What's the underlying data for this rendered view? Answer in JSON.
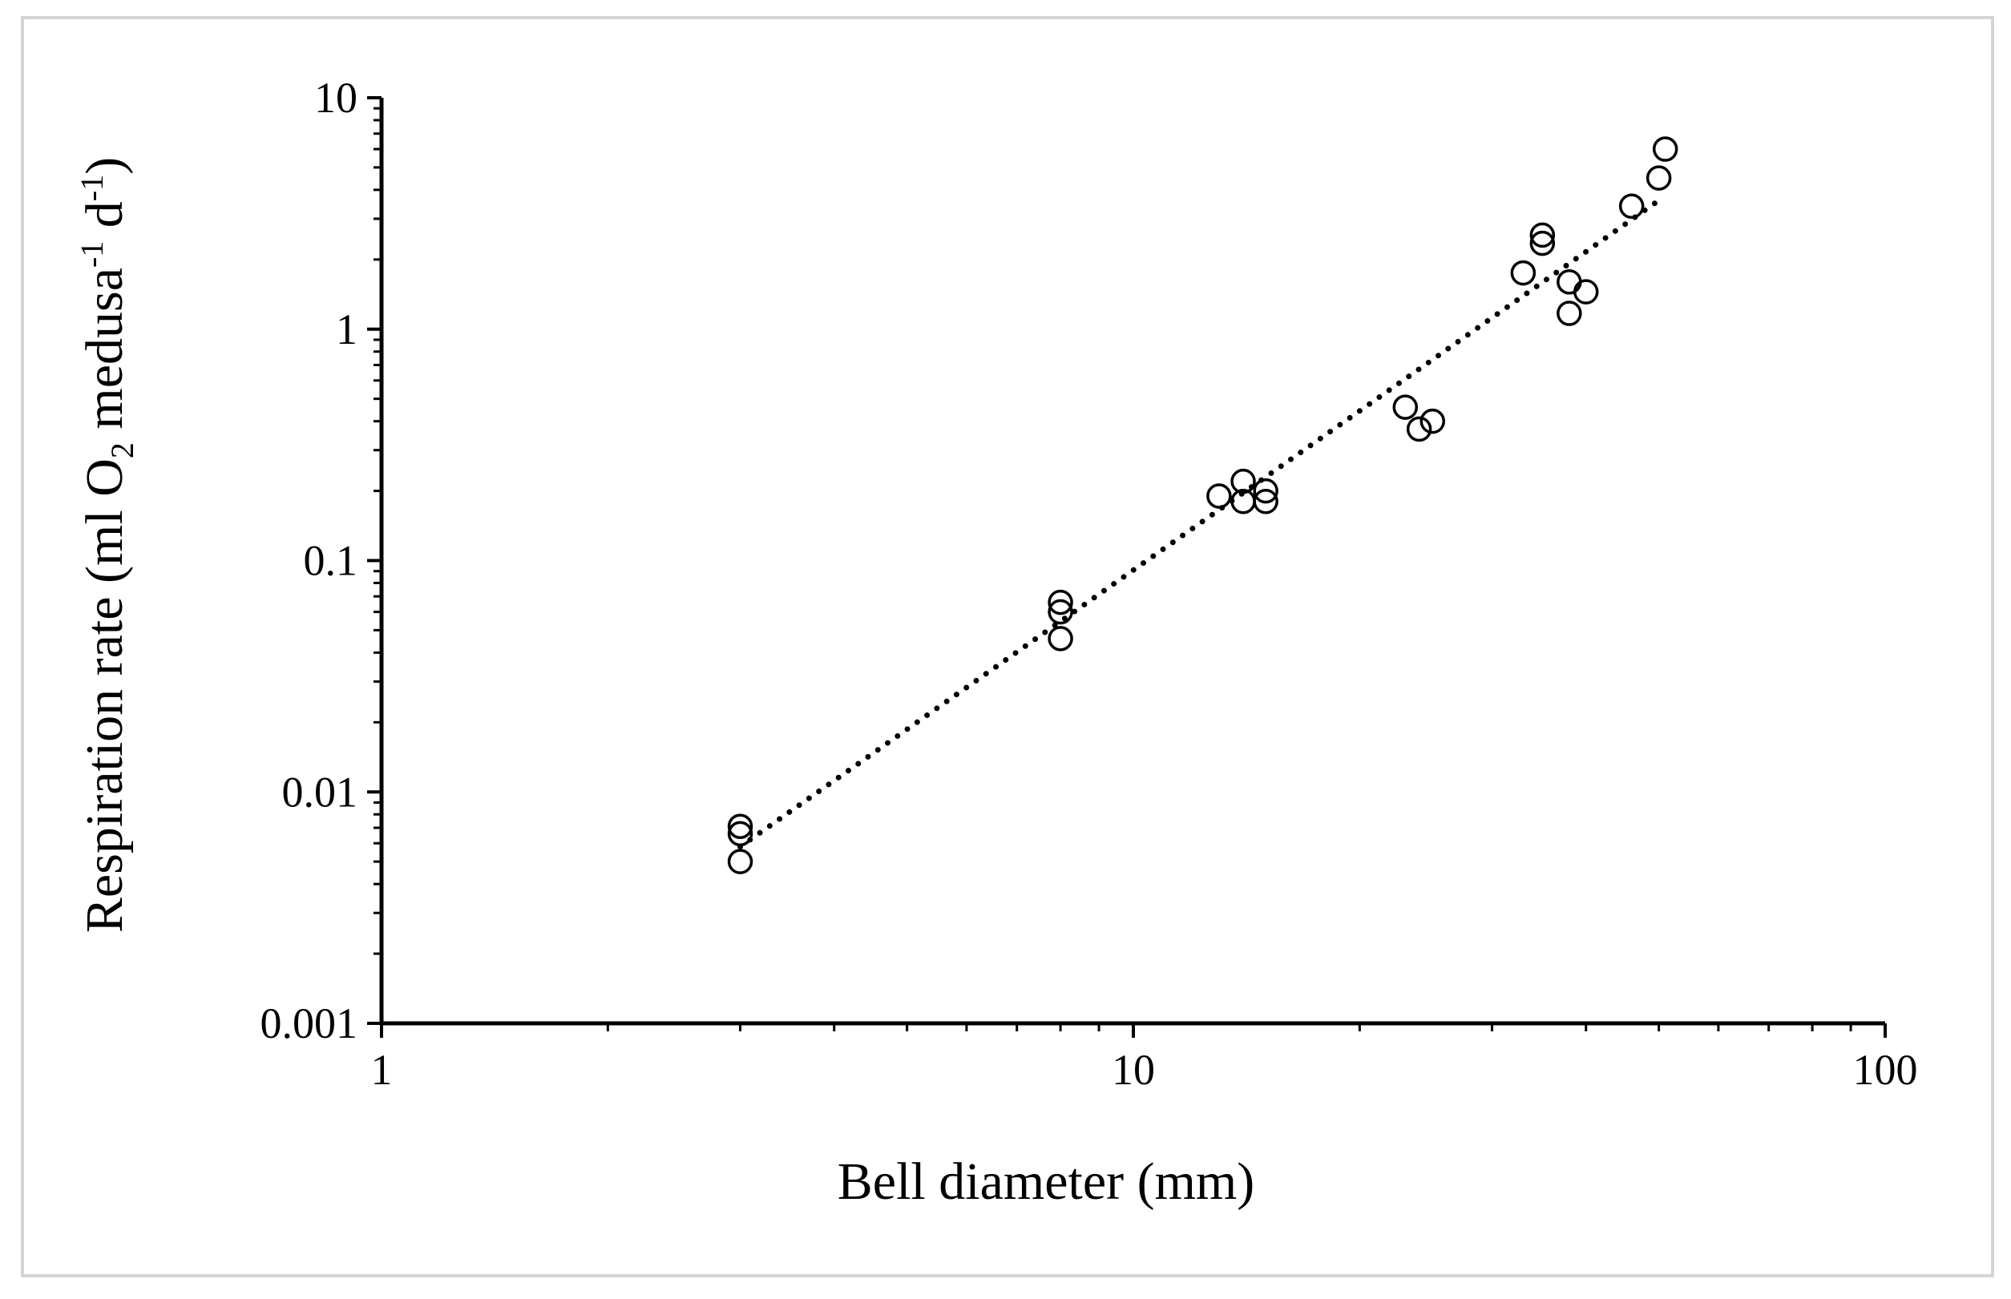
{
  "chart_data": {
    "type": "scatter",
    "title": "",
    "xlabel": "Bell diameter (mm)",
    "ylabel": {
      "text": "Respiration rate (ml O",
      "sub": "2",
      "text2": " medusa",
      "sup1": "-1",
      "text3": " d",
      "sup2": "-1",
      "text4": ")"
    },
    "x_scale": "log",
    "y_scale": "log",
    "xlim": [
      1,
      100
    ],
    "ylim": [
      0.001,
      10
    ],
    "x_ticks": [
      {
        "value": 1,
        "label": "1"
      },
      {
        "value": 10,
        "label": "10"
      },
      {
        "value": 100,
        "label": "100"
      }
    ],
    "y_ticks": [
      {
        "value": 0.001,
        "label": "0.001"
      },
      {
        "value": 0.01,
        "label": "0.01"
      },
      {
        "value": 0.1,
        "label": "0.1"
      },
      {
        "value": 1,
        "label": "1"
      },
      {
        "value": 10,
        "label": "10"
      }
    ],
    "grid": false,
    "marker": "open-circle",
    "trendline": {
      "style": "dotted",
      "x_start": 3,
      "x_end": 50,
      "y_start": 0.0058,
      "y_end": 3.6
    },
    "series": [
      {
        "points": [
          {
            "x": 3,
            "y": 0.0071
          },
          {
            "x": 3,
            "y": 0.0066
          },
          {
            "x": 3,
            "y": 0.005
          },
          {
            "x": 8,
            "y": 0.066
          },
          {
            "x": 8,
            "y": 0.06
          },
          {
            "x": 8,
            "y": 0.046
          },
          {
            "x": 13,
            "y": 0.19
          },
          {
            "x": 14,
            "y": 0.22
          },
          {
            "x": 14,
            "y": 0.18
          },
          {
            "x": 15,
            "y": 0.2
          },
          {
            "x": 15,
            "y": 0.18
          },
          {
            "x": 23,
            "y": 0.46
          },
          {
            "x": 24,
            "y": 0.37
          },
          {
            "x": 25,
            "y": 0.4
          },
          {
            "x": 33,
            "y": 1.75
          },
          {
            "x": 35,
            "y": 2.55
          },
          {
            "x": 35,
            "y": 2.35
          },
          {
            "x": 38,
            "y": 1.6
          },
          {
            "x": 38,
            "y": 1.17
          },
          {
            "x": 40,
            "y": 1.45
          },
          {
            "x": 46,
            "y": 3.4
          },
          {
            "x": 50,
            "y": 4.5
          },
          {
            "x": 51,
            "y": 6.0
          }
        ]
      }
    ]
  }
}
